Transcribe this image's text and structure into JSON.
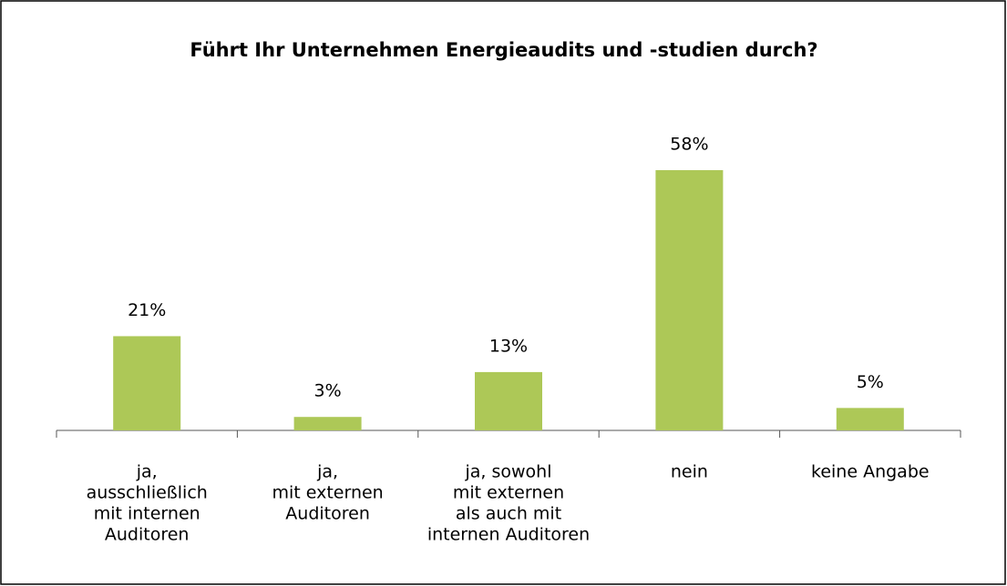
{
  "chart_data": {
    "type": "bar",
    "title": "Führt Ihr Unternehmen Energieaudits und -studien durch?",
    "categories": [
      [
        "ja,",
        "ausschließlich",
        "mit internen",
        "Auditoren"
      ],
      [
        "ja,",
        "mit externen",
        "Auditoren"
      ],
      [
        "ja, sowohl",
        "mit externen",
        "als auch mit",
        "internen Auditoren"
      ],
      [
        "nein"
      ],
      [
        "keine Angabe"
      ]
    ],
    "values": [
      21,
      3,
      13,
      58,
      5
    ],
    "value_labels": [
      "21%",
      "3%",
      "13%",
      "58%",
      "5%"
    ],
    "color": "#adc857"
  }
}
